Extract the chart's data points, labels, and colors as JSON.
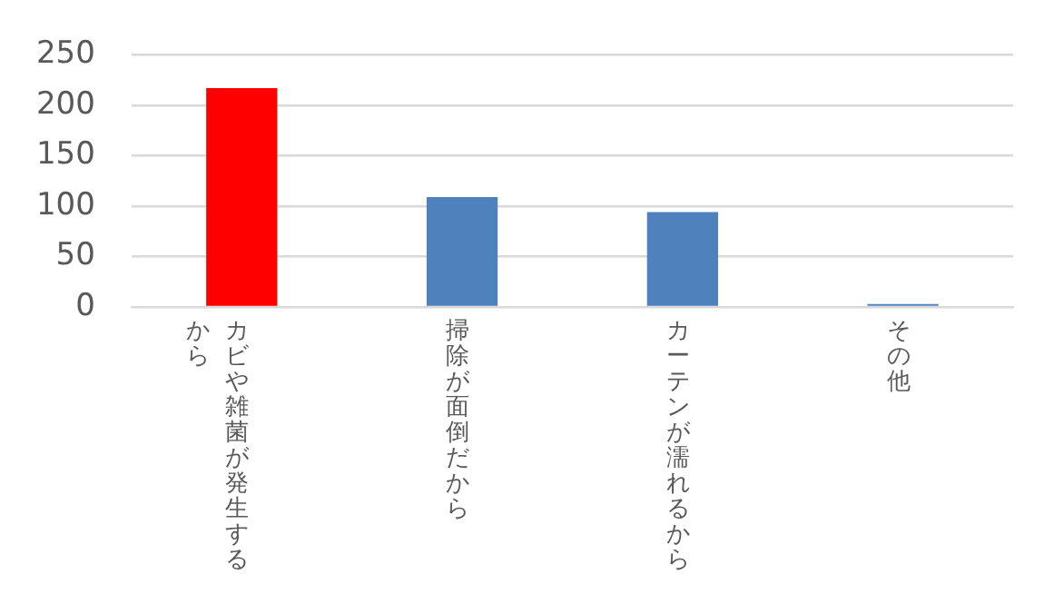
{
  "chart_data": {
    "type": "bar",
    "categories": [
      "カビや雑菌が発生するから",
      "掃除が面倒だから",
      "カーテンが濡れるから",
      "その他"
    ],
    "values": [
      217,
      109,
      94,
      3
    ],
    "colors": [
      "#ff0000",
      "#4f81bd",
      "#4f81bd",
      "#4f81bd"
    ],
    "ylim": [
      0,
      250
    ],
    "yticks": [
      0,
      50,
      100,
      150,
      200,
      250
    ],
    "grid": "y",
    "legend": false
  }
}
